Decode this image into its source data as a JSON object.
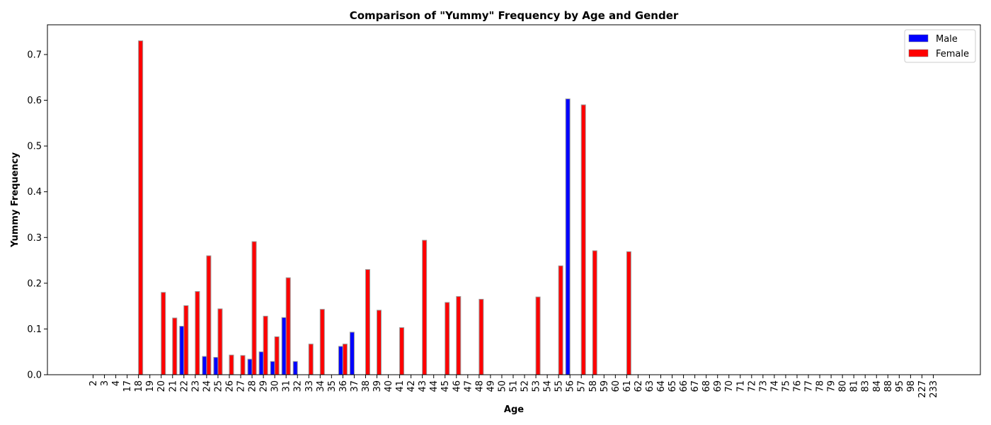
{
  "chart_data": {
    "type": "bar",
    "title": "Comparison of \"Yummy\" Frequency by Age and Gender",
    "xlabel": "Age",
    "ylabel": "Yummy Frequency",
    "ylim": [
      0,
      0.765
    ],
    "yticks": [
      0.0,
      0.1,
      0.2,
      0.3,
      0.4,
      0.5,
      0.6,
      0.7
    ],
    "grid": false,
    "legend_position": "top-right",
    "categories": [
      "2",
      "3",
      "4",
      "17",
      "18",
      "19",
      "20",
      "21",
      "22",
      "23",
      "24",
      "25",
      "26",
      "27",
      "28",
      "29",
      "30",
      "31",
      "32",
      "33",
      "34",
      "35",
      "36",
      "37",
      "38",
      "39",
      "40",
      "41",
      "42",
      "43",
      "44",
      "45",
      "46",
      "47",
      "48",
      "49",
      "50",
      "51",
      "52",
      "53",
      "54",
      "55",
      "56",
      "57",
      "58",
      "59",
      "60",
      "61",
      "62",
      "63",
      "64",
      "65",
      "66",
      "67",
      "68",
      "69",
      "70",
      "71",
      "72",
      "73",
      "74",
      "75",
      "76",
      "77",
      "78",
      "79",
      "80",
      "81",
      "83",
      "84",
      "88",
      "95",
      "98",
      "227",
      "233"
    ],
    "series": [
      {
        "name": "Male",
        "color": "#0000ff",
        "values": [
          0,
          0,
          0,
          0,
          0,
          0,
          0,
          0,
          0.106,
          0,
          0.04,
          0.038,
          0,
          0,
          0.034,
          0.05,
          0.029,
          0.125,
          0.029,
          0,
          0,
          0,
          0.062,
          0.093,
          0,
          0,
          0,
          0,
          0,
          0,
          0,
          0,
          0,
          0,
          0,
          0,
          0,
          0,
          0,
          0,
          0,
          0,
          0.603,
          0,
          0,
          0,
          0,
          0,
          0,
          0,
          0,
          0,
          0,
          0,
          0,
          0,
          0,
          0,
          0,
          0,
          0,
          0,
          0,
          0,
          0,
          0,
          0,
          0,
          0,
          0,
          0,
          0,
          0,
          0,
          0
        ]
      },
      {
        "name": "Female",
        "color": "#ff0000",
        "values": [
          0,
          0,
          0,
          0,
          0.73,
          0,
          0.18,
          0.124,
          0.151,
          0.182,
          0.26,
          0.144,
          0.043,
          0.042,
          0.291,
          0.128,
          0.083,
          0.212,
          0,
          0.067,
          0.143,
          0,
          0.067,
          0,
          0.23,
          0.141,
          0,
          0.103,
          0,
          0.294,
          0,
          0.158,
          0.171,
          0,
          0.165,
          0,
          0,
          0,
          0,
          0.17,
          0,
          0.238,
          0,
          0.59,
          0.271,
          0,
          0,
          0.269,
          0,
          0,
          0,
          0,
          0,
          0,
          0,
          0,
          0,
          0,
          0,
          0,
          0,
          0,
          0,
          0,
          0,
          0,
          0,
          0,
          0,
          0,
          0,
          0,
          0,
          0,
          0
        ]
      }
    ]
  }
}
